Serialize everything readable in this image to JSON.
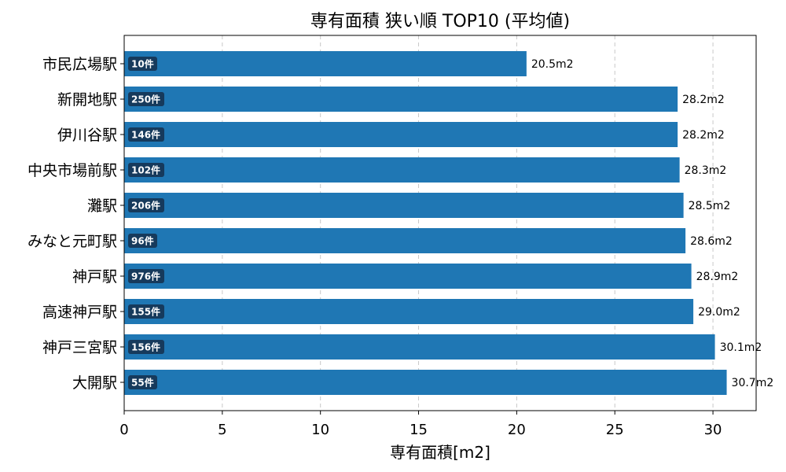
{
  "chart_data": {
    "type": "bar",
    "orientation": "horizontal",
    "title": "専有面積 狭い順 TOP10 (平均値)",
    "xlabel": "専有面積[m2]",
    "ylabel": "",
    "xlim": [
      0,
      32.2
    ],
    "xticks": [
      0,
      5,
      10,
      15,
      20,
      25,
      30
    ],
    "grid": "x-dashed",
    "bar_color": "#1f77b4",
    "badge_color": "#163a5c",
    "categories": [
      "市民広場駅",
      "新開地駅",
      "伊川谷駅",
      "中央市場前駅",
      "灘駅",
      "みなと元町駅",
      "神戸駅",
      "高速神戸駅",
      "神戸三宮駅",
      "大開駅"
    ],
    "values": [
      20.5,
      28.2,
      28.2,
      28.3,
      28.5,
      28.6,
      28.9,
      29.0,
      30.1,
      30.7
    ],
    "value_labels": [
      "20.5m2",
      "28.2m2",
      "28.2m2",
      "28.3m2",
      "28.5m2",
      "28.6m2",
      "28.9m2",
      "29.0m2",
      "30.1m2",
      "30.7m2"
    ],
    "count_labels": [
      "10件",
      "250件",
      "146件",
      "102件",
      "206件",
      "96件",
      "976件",
      "155件",
      "156件",
      "55件"
    ]
  }
}
